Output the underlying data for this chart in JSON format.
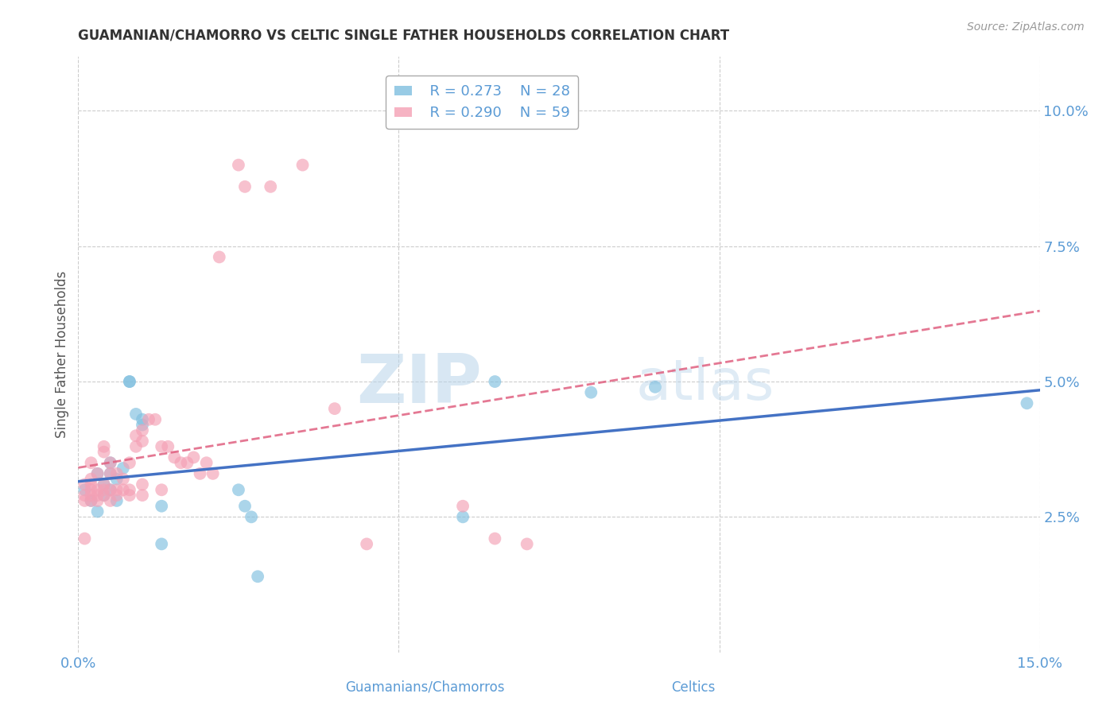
{
  "title": "GUAMANIAN/CHAMORRO VS CELTIC SINGLE FATHER HOUSEHOLDS CORRELATION CHART",
  "source": "Source: ZipAtlas.com",
  "xlabel_label": "Guamanians/Chamorros",
  "xlabel2_label": "Celtics",
  "ylabel": "Single Father Households",
  "xlim": [
    0.0,
    0.15
  ],
  "ylim": [
    0.0,
    0.11
  ],
  "xticks": [
    0.0,
    0.05,
    0.1,
    0.15
  ],
  "xtick_labels": [
    "0.0%",
    "",
    "",
    "15.0%"
  ],
  "yticks": [
    0.025,
    0.05,
    0.075,
    0.1
  ],
  "ytick_labels": [
    "2.5%",
    "5.0%",
    "7.5%",
    "10.0%"
  ],
  "axis_color": "#5b9bd5",
  "background_color": "#ffffff",
  "watermark_line1": "ZIP",
  "watermark_line2": "atlas",
  "legend_r1": "R = 0.273",
  "legend_n1": "N = 28",
  "legend_r2": "R = 0.290",
  "legend_n2": "N = 59",
  "color_blue": "#7fbfdf",
  "color_pink": "#f4a0b5",
  "trendline_blue": "#4472c4",
  "trendline_pink": "#e06080",
  "grid_color": "#cccccc",
  "title_color": "#333333",
  "source_color": "#999999",
  "ylabel_color": "#555555",
  "guam_x": [
    0.001,
    0.002,
    0.003,
    0.003,
    0.004,
    0.004,
    0.005,
    0.005,
    0.005,
    0.006,
    0.006,
    0.007,
    0.008,
    0.008,
    0.009,
    0.01,
    0.01,
    0.013,
    0.013,
    0.025,
    0.026,
    0.027,
    0.028,
    0.06,
    0.065,
    0.08,
    0.09,
    0.148
  ],
  "guam_y": [
    0.03,
    0.028,
    0.026,
    0.033,
    0.029,
    0.031,
    0.033,
    0.035,
    0.03,
    0.032,
    0.028,
    0.034,
    0.05,
    0.05,
    0.044,
    0.042,
    0.043,
    0.027,
    0.02,
    0.03,
    0.027,
    0.025,
    0.014,
    0.025,
    0.05,
    0.048,
    0.049,
    0.046
  ],
  "celtic_x": [
    0.001,
    0.001,
    0.001,
    0.001,
    0.002,
    0.002,
    0.002,
    0.002,
    0.002,
    0.002,
    0.003,
    0.003,
    0.003,
    0.003,
    0.004,
    0.004,
    0.004,
    0.004,
    0.004,
    0.005,
    0.005,
    0.005,
    0.005,
    0.006,
    0.006,
    0.006,
    0.007,
    0.007,
    0.008,
    0.008,
    0.008,
    0.009,
    0.009,
    0.01,
    0.01,
    0.01,
    0.01,
    0.011,
    0.012,
    0.013,
    0.013,
    0.014,
    0.015,
    0.016,
    0.017,
    0.018,
    0.019,
    0.02,
    0.021,
    0.022,
    0.025,
    0.026,
    0.03,
    0.035,
    0.04,
    0.045,
    0.06,
    0.065,
    0.07
  ],
  "celtic_y": [
    0.028,
    0.029,
    0.031,
    0.021,
    0.03,
    0.032,
    0.028,
    0.029,
    0.035,
    0.031,
    0.033,
    0.028,
    0.029,
    0.03,
    0.03,
    0.031,
    0.029,
    0.037,
    0.038,
    0.03,
    0.035,
    0.033,
    0.028,
    0.03,
    0.033,
    0.029,
    0.032,
    0.03,
    0.03,
    0.029,
    0.035,
    0.038,
    0.04,
    0.041,
    0.039,
    0.031,
    0.029,
    0.043,
    0.043,
    0.03,
    0.038,
    0.038,
    0.036,
    0.035,
    0.035,
    0.036,
    0.033,
    0.035,
    0.033,
    0.073,
    0.09,
    0.086,
    0.086,
    0.09,
    0.045,
    0.02,
    0.027,
    0.021,
    0.02
  ]
}
